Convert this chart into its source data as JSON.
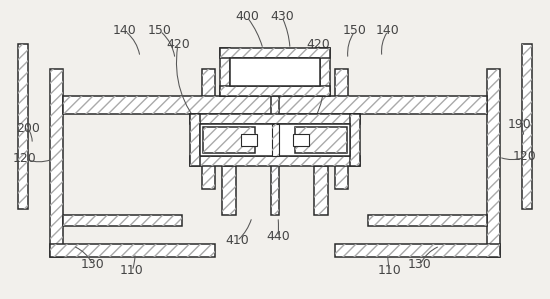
{
  "bg_color": "#f2f0ec",
  "line_color": "#2a2a2a",
  "figsize": [
    5.5,
    2.99
  ],
  "dpi": 100,
  "hatch_density": "///",
  "font_size": 9.0,
  "font_color": "#444444",
  "leader_color": "#555555"
}
